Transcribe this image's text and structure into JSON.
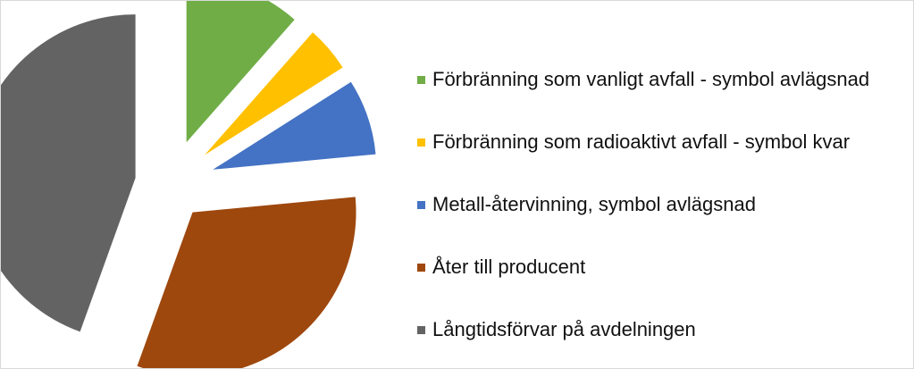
{
  "chart_data": {
    "type": "pie",
    "title": "",
    "legend_position": "right",
    "start_angle_deg": 0,
    "direction": "clockwise",
    "exploded": true,
    "slices": [
      {
        "label": "Förbränning som vanligt avfall - symbol avlägsnad",
        "value": 11.5,
        "color": "#70ad47"
      },
      {
        "label": "Förbränning som radioaktivt avfall - symbol kvar",
        "value": 4.5,
        "color": "#ffc000"
      },
      {
        "label": "Metall-återvinning, symbol avlägsnad",
        "value": 7.5,
        "color": "#4472c4"
      },
      {
        "label": "Åter till producent",
        "value": 32.0,
        "color": "#9e480e"
      },
      {
        "label": "Långtidsförvar på avdelningen",
        "value": 44.5,
        "color": "#636363"
      }
    ]
  }
}
